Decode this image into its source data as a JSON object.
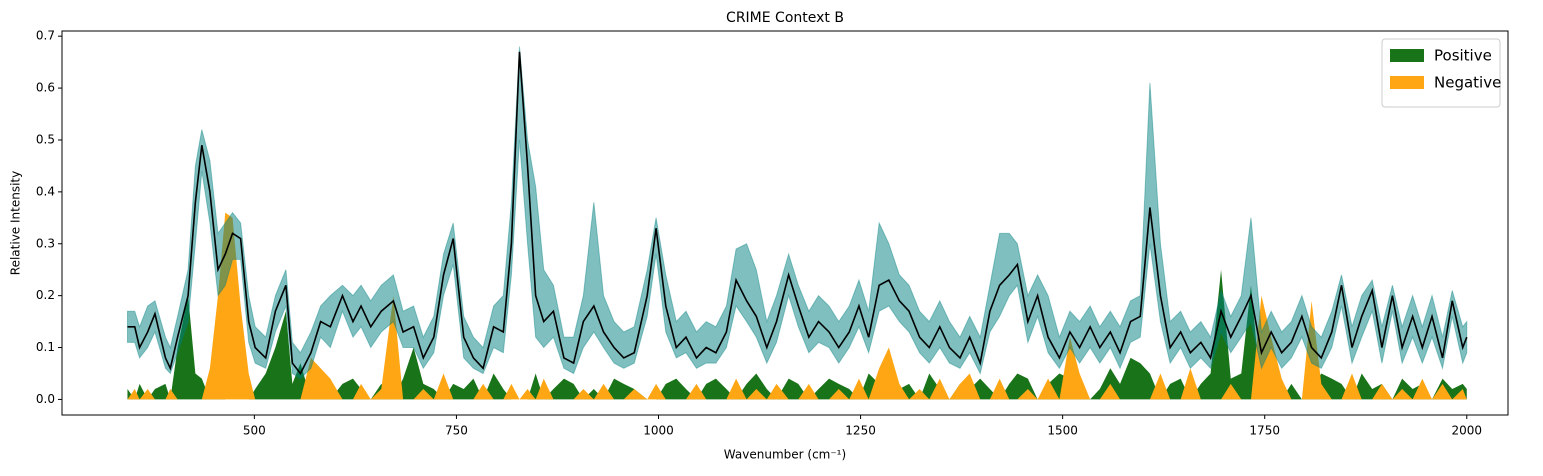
{
  "chart_data": {
    "type": "line",
    "title": "CRIME Context B",
    "x_label": "Wavenumber (cm⁻¹)",
    "y_label": "Relative Intensity",
    "x": [
      343,
      352,
      358,
      368,
      377,
      390,
      396,
      405,
      418,
      427,
      435,
      445,
      455,
      464,
      473,
      483,
      493,
      501,
      514,
      526,
      539,
      547,
      557,
      570,
      582,
      594,
      609,
      622,
      632,
      644,
      657,
      672,
      684,
      697,
      709,
      722,
      734,
      746,
      759,
      771,
      783,
      796,
      808,
      818,
      828,
      838,
      848,
      858,
      870,
      883,
      895,
      907,
      920,
      932,
      945,
      957,
      970,
      986,
      997,
      1009,
      1022,
      1034,
      1047,
      1059,
      1071,
      1084,
      1096,
      1109,
      1121,
      1134,
      1146,
      1161,
      1173,
      1186,
      1198,
      1211,
      1223,
      1236,
      1248,
      1260,
      1273,
      1285,
      1298,
      1310,
      1323,
      1335,
      1348,
      1360,
      1373,
      1385,
      1398,
      1410,
      1422,
      1434,
      1444,
      1457,
      1469,
      1482,
      1496,
      1509,
      1521,
      1534,
      1546,
      1559,
      1571,
      1584,
      1596,
      1608,
      1621,
      1633,
      1646,
      1658,
      1671,
      1683,
      1696,
      1708,
      1721,
      1733,
      1746,
      1758,
      1771,
      1783,
      1796,
      1808,
      1820,
      1833,
      1845,
      1858,
      1870,
      1883,
      1895,
      1908,
      1920,
      1933,
      1945,
      1957,
      1970,
      1982,
      1995,
      2000
    ],
    "line": {
      "color": "#000000",
      "values": [
        0.14,
        0.14,
        0.1,
        0.13,
        0.165,
        0.08,
        0.06,
        0.12,
        0.2,
        0.38,
        0.49,
        0.4,
        0.25,
        0.28,
        0.32,
        0.31,
        0.15,
        0.1,
        0.08,
        0.17,
        0.22,
        0.07,
        0.05,
        0.09,
        0.15,
        0.14,
        0.2,
        0.15,
        0.18,
        0.14,
        0.17,
        0.19,
        0.13,
        0.14,
        0.08,
        0.12,
        0.24,
        0.31,
        0.12,
        0.08,
        0.06,
        0.14,
        0.13,
        0.3,
        0.67,
        0.45,
        0.2,
        0.15,
        0.17,
        0.08,
        0.07,
        0.15,
        0.18,
        0.13,
        0.1,
        0.08,
        0.09,
        0.2,
        0.33,
        0.18,
        0.1,
        0.12,
        0.08,
        0.1,
        0.09,
        0.13,
        0.23,
        0.19,
        0.16,
        0.1,
        0.15,
        0.24,
        0.18,
        0.12,
        0.15,
        0.13,
        0.1,
        0.13,
        0.18,
        0.12,
        0.22,
        0.23,
        0.19,
        0.17,
        0.12,
        0.1,
        0.14,
        0.1,
        0.08,
        0.12,
        0.07,
        0.17,
        0.22,
        0.24,
        0.26,
        0.15,
        0.2,
        0.12,
        0.08,
        0.13,
        0.1,
        0.14,
        0.1,
        0.13,
        0.09,
        0.15,
        0.16,
        0.37,
        0.2,
        0.1,
        0.13,
        0.09,
        0.11,
        0.08,
        0.17,
        0.12,
        0.16,
        0.2,
        0.09,
        0.13,
        0.09,
        0.11,
        0.16,
        0.1,
        0.08,
        0.13,
        0.22,
        0.1,
        0.16,
        0.21,
        0.1,
        0.2,
        0.1,
        0.16,
        0.1,
        0.16,
        0.08,
        0.19,
        0.1,
        0.12
      ]
    },
    "band": {
      "color": "#008080",
      "upper": [
        0.17,
        0.17,
        0.14,
        0.18,
        0.19,
        0.12,
        0.1,
        0.16,
        0.25,
        0.45,
        0.52,
        0.46,
        0.32,
        0.34,
        0.36,
        0.34,
        0.2,
        0.14,
        0.12,
        0.2,
        0.25,
        0.11,
        0.09,
        0.13,
        0.18,
        0.2,
        0.22,
        0.2,
        0.22,
        0.19,
        0.22,
        0.24,
        0.17,
        0.18,
        0.12,
        0.16,
        0.28,
        0.34,
        0.16,
        0.12,
        0.1,
        0.18,
        0.2,
        0.38,
        0.68,
        0.5,
        0.41,
        0.25,
        0.22,
        0.12,
        0.12,
        0.2,
        0.38,
        0.2,
        0.15,
        0.13,
        0.14,
        0.25,
        0.35,
        0.24,
        0.15,
        0.17,
        0.13,
        0.15,
        0.14,
        0.18,
        0.29,
        0.3,
        0.25,
        0.15,
        0.2,
        0.28,
        0.22,
        0.17,
        0.2,
        0.18,
        0.15,
        0.18,
        0.23,
        0.17,
        0.34,
        0.3,
        0.24,
        0.22,
        0.17,
        0.15,
        0.19,
        0.15,
        0.12,
        0.16,
        0.12,
        0.22,
        0.32,
        0.32,
        0.3,
        0.2,
        0.24,
        0.2,
        0.12,
        0.17,
        0.15,
        0.18,
        0.14,
        0.17,
        0.14,
        0.19,
        0.2,
        0.61,
        0.3,
        0.15,
        0.17,
        0.13,
        0.15,
        0.12,
        0.21,
        0.16,
        0.2,
        0.35,
        0.13,
        0.17,
        0.13,
        0.15,
        0.2,
        0.14,
        0.12,
        0.17,
        0.24,
        0.14,
        0.2,
        0.23,
        0.14,
        0.22,
        0.14,
        0.2,
        0.14,
        0.2,
        0.12,
        0.21,
        0.14,
        0.15
      ],
      "lower": [
        0.11,
        0.11,
        0.08,
        0.1,
        0.13,
        0.06,
        0.05,
        0.09,
        0.15,
        0.3,
        0.44,
        0.34,
        0.2,
        0.22,
        0.27,
        0.27,
        0.11,
        0.07,
        0.06,
        0.13,
        0.18,
        0.05,
        0.04,
        0.06,
        0.12,
        0.1,
        0.17,
        0.12,
        0.14,
        0.1,
        0.13,
        0.15,
        0.1,
        0.1,
        0.06,
        0.09,
        0.2,
        0.26,
        0.08,
        0.06,
        0.05,
        0.1,
        0.09,
        0.24,
        0.5,
        0.3,
        0.12,
        0.1,
        0.12,
        0.06,
        0.05,
        0.1,
        0.13,
        0.1,
        0.07,
        0.06,
        0.07,
        0.16,
        0.28,
        0.13,
        0.08,
        0.09,
        0.06,
        0.07,
        0.07,
        0.1,
        0.18,
        0.15,
        0.12,
        0.07,
        0.11,
        0.2,
        0.14,
        0.09,
        0.11,
        0.1,
        0.07,
        0.1,
        0.14,
        0.09,
        0.17,
        0.18,
        0.15,
        0.13,
        0.09,
        0.07,
        0.1,
        0.07,
        0.06,
        0.09,
        0.05,
        0.13,
        0.16,
        0.2,
        0.22,
        0.11,
        0.16,
        0.09,
        0.06,
        0.1,
        0.07,
        0.1,
        0.07,
        0.1,
        0.06,
        0.11,
        0.12,
        0.3,
        0.15,
        0.07,
        0.1,
        0.06,
        0.08,
        0.06,
        0.13,
        0.09,
        0.12,
        0.15,
        0.06,
        0.1,
        0.06,
        0.08,
        0.12,
        0.07,
        0.06,
        0.1,
        0.18,
        0.07,
        0.12,
        0.17,
        0.07,
        0.17,
        0.07,
        0.12,
        0.07,
        0.12,
        0.06,
        0.16,
        0.07,
        0.09
      ]
    },
    "series": [
      {
        "name": "Positive",
        "color": "#197319",
        "values": [
          0.02,
          0.0,
          0.03,
          0.0,
          0.02,
          0.03,
          0.0,
          0.1,
          0.2,
          0.05,
          0.04,
          0.0,
          0.03,
          0.0,
          0.0,
          0.0,
          0.0,
          0.02,
          0.05,
          0.1,
          0.17,
          0.03,
          0.07,
          0.0,
          0.02,
          0.0,
          0.03,
          0.04,
          0.02,
          0.0,
          0.03,
          0.0,
          0.04,
          0.1,
          0.03,
          0.02,
          0.0,
          0.03,
          0.02,
          0.04,
          0.0,
          0.05,
          0.02,
          0.0,
          0.0,
          0.0,
          0.05,
          0.0,
          0.02,
          0.04,
          0.03,
          0.0,
          0.02,
          0.0,
          0.04,
          0.03,
          0.02,
          0.0,
          0.0,
          0.03,
          0.04,
          0.02,
          0.0,
          0.03,
          0.04,
          0.02,
          0.0,
          0.03,
          0.05,
          0.02,
          0.0,
          0.04,
          0.03,
          0.0,
          0.02,
          0.04,
          0.03,
          0.02,
          0.0,
          0.05,
          0.03,
          0.0,
          0.02,
          0.03,
          0.0,
          0.05,
          0.02,
          0.0,
          0.03,
          0.02,
          0.04,
          0.02,
          0.0,
          0.03,
          0.05,
          0.04,
          0.0,
          0.03,
          0.05,
          0.04,
          0.03,
          0.0,
          0.02,
          0.06,
          0.03,
          0.08,
          0.07,
          0.05,
          0.0,
          0.03,
          0.04,
          0.0,
          0.03,
          0.05,
          0.25,
          0.04,
          0.05,
          0.22,
          0.0,
          0.04,
          0.0,
          0.03,
          0.0,
          0.02,
          0.05,
          0.04,
          0.03,
          0.0,
          0.05,
          0.02,
          0.03,
          0.0,
          0.04,
          0.02,
          0.03,
          0.0,
          0.04,
          0.02,
          0.03,
          0.02
        ]
      },
      {
        "name": "Negative",
        "color": "#ffa615",
        "values": [
          0.0,
          0.02,
          0.0,
          0.02,
          0.0,
          0.0,
          0.02,
          0.0,
          0.0,
          0.0,
          0.0,
          0.06,
          0.2,
          0.36,
          0.35,
          0.18,
          0.05,
          0.0,
          0.0,
          0.0,
          0.0,
          0.0,
          0.0,
          0.08,
          0.06,
          0.04,
          0.0,
          0.0,
          0.03,
          0.0,
          0.02,
          0.2,
          0.0,
          0.0,
          0.02,
          0.0,
          0.05,
          0.0,
          0.0,
          0.0,
          0.03,
          0.0,
          0.0,
          0.03,
          0.0,
          0.02,
          0.0,
          0.04,
          0.0,
          0.0,
          0.0,
          0.02,
          0.0,
          0.03,
          0.0,
          0.0,
          0.02,
          0.0,
          0.03,
          0.0,
          0.0,
          0.0,
          0.03,
          0.0,
          0.0,
          0.0,
          0.04,
          0.0,
          0.02,
          0.0,
          0.03,
          0.0,
          0.0,
          0.03,
          0.0,
          0.0,
          0.02,
          0.0,
          0.04,
          0.0,
          0.06,
          0.1,
          0.03,
          0.0,
          0.02,
          0.0,
          0.04,
          0.0,
          0.03,
          0.05,
          0.0,
          0.0,
          0.04,
          0.0,
          0.0,
          0.02,
          0.0,
          0.04,
          0.0,
          0.12,
          0.05,
          0.0,
          0.0,
          0.03,
          0.0,
          0.0,
          0.0,
          0.0,
          0.05,
          0.0,
          0.0,
          0.06,
          0.0,
          0.0,
          0.0,
          0.03,
          0.0,
          0.0,
          0.2,
          0.12,
          0.04,
          0.0,
          0.0,
          0.19,
          0.03,
          0.0,
          0.0,
          0.05,
          0.0,
          0.0,
          0.03,
          0.0,
          0.02,
          0.0,
          0.04,
          0.0,
          0.03,
          0.0,
          0.02,
          0.0
        ]
      }
    ],
    "xlim": [
      262,
      2051
    ],
    "ylim": [
      -0.03,
      0.71
    ],
    "xticks": [
      500,
      750,
      1000,
      1250,
      1500,
      1750,
      2000
    ],
    "yticks": [
      {
        "value": 0,
        "label": "0.0"
      },
      0.1,
      0.2,
      0.3,
      0.4,
      0.5,
      0.6,
      0.7
    ],
    "legend": "upper right"
  }
}
